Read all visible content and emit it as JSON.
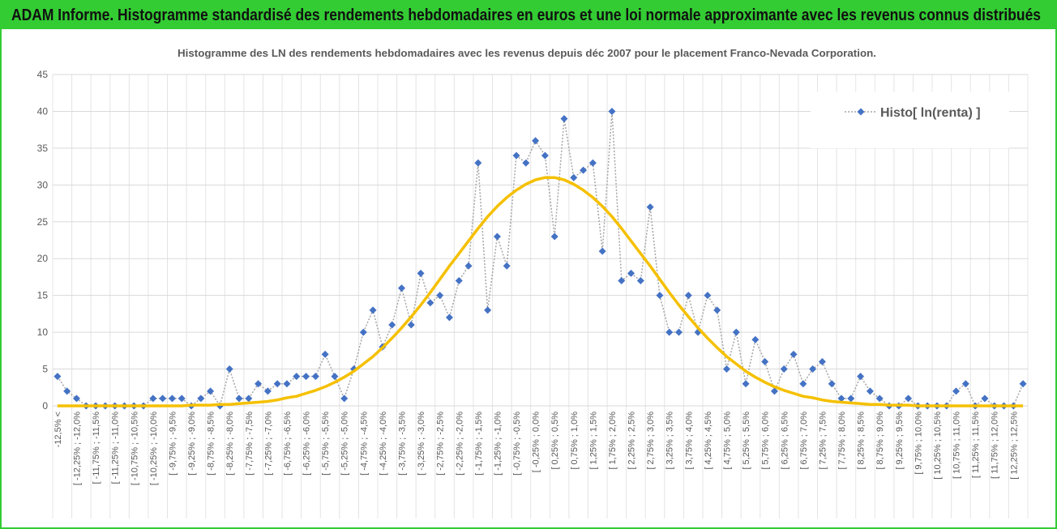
{
  "chart_data": {
    "type": "line",
    "header": "ADAM Informe. Histogramme standardisé des rendements hebdomadaires en euros et une loi normale approximante avec les revenus connus distribués",
    "title": "Histogramme des LN des rendements hebdomadaires avec les revenus depuis déc 2007 pour le placement Franco-Nevada Corporation.",
    "categories": [
      "-12,5% <",
      null,
      "[ -12,25% ; -12,0%",
      null,
      "[ -11,75% ; -11,5%",
      null,
      "[ -11,25% ; -11,0%",
      null,
      "[ -10,75% ; -10,5%",
      null,
      "[ -10,25% ; -10,0%",
      null,
      "[ -9,75% ; -9,5%",
      null,
      "[ -9,25% ; -9,0%",
      null,
      "[ -8,75% ; -8,5%",
      null,
      "[ -8,25% ; -8,0%",
      null,
      "[ -7,75% ; -7,5%",
      null,
      "[ -7,25% ; -7,0%",
      null,
      "[ -6,75% ; -6,5%",
      null,
      "[ -6,25% ; -6,0%",
      null,
      "[ -5,75% ; -5,5%",
      null,
      "[ -5,25% ; -5,0%",
      null,
      "[ -4,75% ; -4,5%",
      null,
      "[ -4,25% ; -4,0%",
      null,
      "[ -3,75% ; -3,5%",
      null,
      "[ -3,25% ; -3,0%",
      null,
      "[ -2,75% ; -2,5%",
      null,
      "[ -2,25% ; -2,0%",
      null,
      "[ -1,75% ; -1,5%",
      null,
      "[ -1,25% ; -1,0%",
      null,
      "[ -0,75% ; -0,5%",
      null,
      "[ -0,25% ; 0,0%",
      null,
      "[ 0,25% ; 0,5%",
      null,
      "[ 0,75% ; 1,0%",
      null,
      "[ 1,25% ; 1,5%",
      null,
      "[ 1,75% ; 2,0%",
      null,
      "[ 2,25% ; 2,5%",
      null,
      "[ 2,75% ; 3,0%",
      null,
      "[ 3,25% ; 3,5%",
      null,
      "[ 3,75% ; 4,0%",
      null,
      "[ 4,25% ; 4,5%",
      null,
      "[ 4,75% ; 5,0%",
      null,
      "[ 5,25% ; 5,5%",
      null,
      "[ 5,75% ; 6,0%",
      null,
      "[ 6,25% ; 6,5%",
      null,
      "[ 6,75% ; 7,0%",
      null,
      "[ 7,25% ; 7,5%",
      null,
      "[ 7,75% ; 8,0%",
      null,
      "[ 8,25% ; 8,5%",
      null,
      "[ 8,75% ; 9,0%",
      null,
      "[ 9,25% ; 9,5%",
      null,
      "[ 9,75% ; 10,0%",
      null,
      "[ 10,25% ; 10,5%",
      null,
      "[ 10,75% ; 11,0%",
      null,
      "[ 11,25% ; 11,5%",
      null,
      "[ 11,75% ; 12,0%",
      null,
      "[ 12,25% ; 12,5%",
      null
    ],
    "series": [
      {
        "name": "Histo[ ln(renta) ]",
        "color": "#4472c4",
        "line_color": "#a5a5a5",
        "values": [
          4,
          2,
          1,
          0,
          0,
          0,
          0,
          0,
          0,
          0,
          1,
          1,
          1,
          1,
          0,
          1,
          2,
          0,
          5,
          1,
          1,
          3,
          2,
          3,
          3,
          4,
          4,
          4,
          7,
          4,
          1,
          5,
          10,
          13,
          8,
          11,
          16,
          11,
          18,
          14,
          15,
          12,
          17,
          19,
          33,
          13,
          23,
          19,
          34,
          33,
          36,
          34,
          23,
          39,
          31,
          32,
          33,
          21,
          40,
          17,
          18,
          17,
          27,
          15,
          10,
          10,
          15,
          10,
          15,
          13,
          5,
          10,
          3,
          9,
          6,
          2,
          5,
          7,
          3,
          5,
          6,
          3,
          1,
          1,
          4,
          2,
          1,
          0,
          0,
          1,
          0,
          0,
          0,
          0,
          2,
          3,
          0,
          1,
          0,
          0,
          0,
          3
        ]
      },
      {
        "color": "#f5c000",
        "values": [
          0,
          0,
          0,
          0,
          0,
          0,
          0,
          0,
          0,
          0,
          0,
          0,
          0,
          0,
          0.1,
          0.1,
          0.1,
          0.2,
          0.2,
          0.3,
          0.4,
          0.5,
          0.6,
          0.8,
          1.1,
          1.3,
          1.7,
          2.1,
          2.6,
          3.2,
          3.9,
          4.7,
          5.7,
          6.7,
          7.9,
          9.2,
          10.6,
          12.1,
          13.7,
          15.4,
          17.2,
          19.0,
          20.7,
          22.4,
          24.1,
          25.7,
          27.1,
          28.3,
          29.3,
          30.1,
          30.7,
          31.0,
          31.0,
          30.7,
          30.1,
          29.3,
          28.3,
          27.1,
          25.7,
          24.1,
          22.4,
          20.7,
          19.0,
          17.2,
          15.4,
          13.7,
          12.1,
          10.6,
          9.2,
          7.9,
          6.7,
          5.7,
          4.7,
          3.9,
          3.2,
          2.6,
          2.1,
          1.7,
          1.3,
          1.1,
          0.8,
          0.6,
          0.5,
          0.4,
          0.3,
          0.2,
          0.2,
          0.1,
          0.1,
          0.1,
          0,
          0,
          0,
          0,
          0,
          0,
          0,
          0,
          0,
          0,
          0,
          0
        ]
      }
    ],
    "ylim": [
      0,
      45
    ],
    "yticks": [
      0,
      5,
      10,
      15,
      20,
      25,
      30,
      35,
      40,
      45
    ],
    "grid": true,
    "legend": "top-right",
    "header_color": "#33cc33"
  }
}
